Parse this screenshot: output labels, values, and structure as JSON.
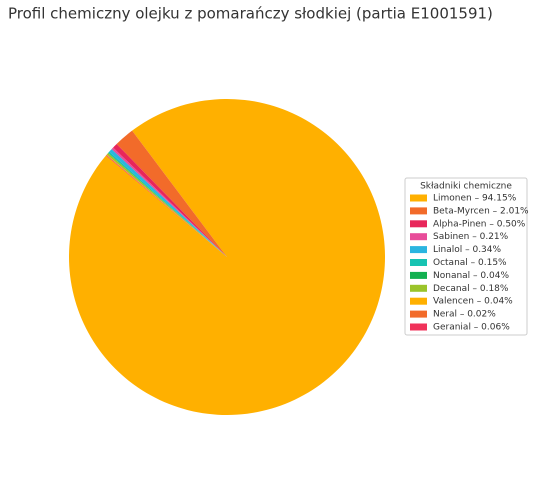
{
  "chart_data": {
    "type": "pie",
    "title": "Profil chemiczny olejku z pomarańczy słodkiej (partia E1001591)",
    "legend_title": "Składniki chemiczne",
    "categories": [
      "Limonen – 94.15%",
      "Beta-Myrcen – 2.01%",
      "Alpha-Pinen – 0.50%",
      "Sabinen – 0.21%",
      "Linalol – 0.34%",
      "Octanal – 0.15%",
      "Nonanal – 0.04%",
      "Decanal – 0.18%",
      "Valencen – 0.04%",
      "Neral – 0.02%",
      "Geranial – 0.06%"
    ],
    "values": [
      94.15,
      2.01,
      0.5,
      0.21,
      0.34,
      0.15,
      0.04,
      0.18,
      0.04,
      0.02,
      0.06
    ],
    "colors": [
      "#ffb000",
      "#f26b2a",
      "#e8265a",
      "#e84c9a",
      "#2bb5e0",
      "#17c3b2",
      "#12b050",
      "#9bc42a",
      "#ffb000",
      "#f26b2a",
      "#f0325a"
    ],
    "legend": "right"
  }
}
